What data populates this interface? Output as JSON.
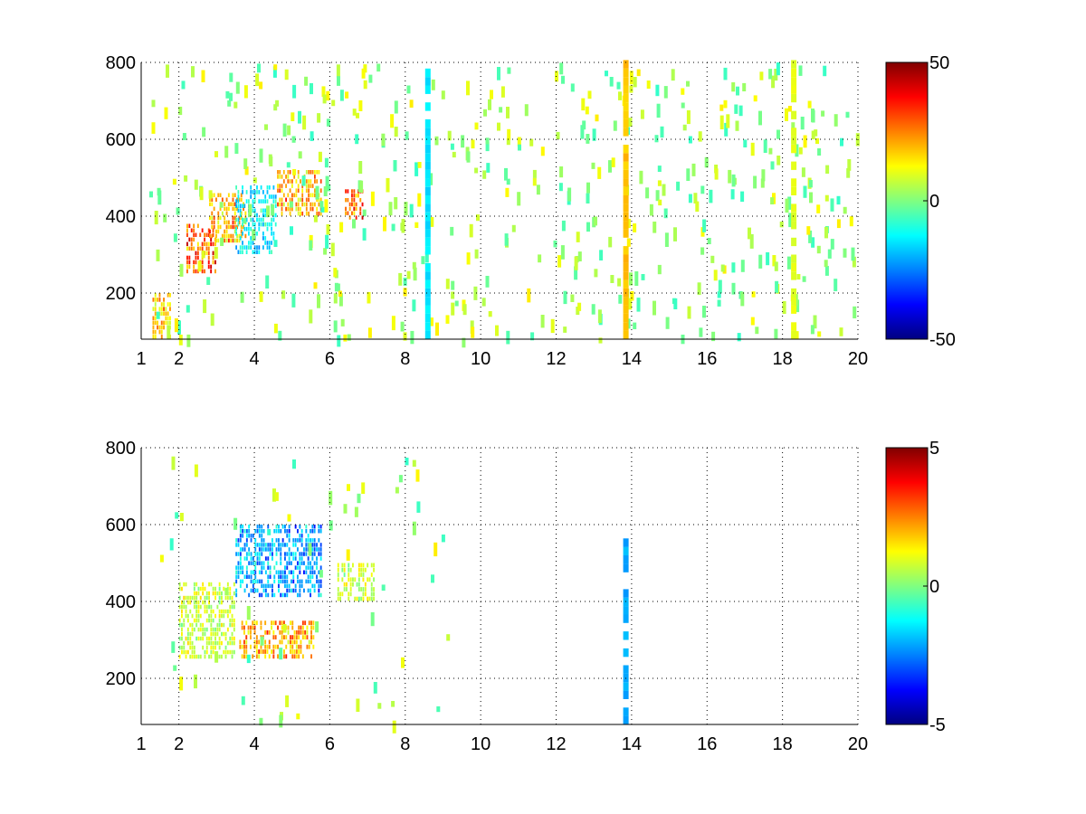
{
  "chart_data": [
    {
      "type": "heatmap",
      "panel": "top",
      "xlim": [
        1,
        20
      ],
      "ylim": [
        80,
        800
      ],
      "xticks": [
        1,
        2,
        4,
        6,
        8,
        10,
        12,
        14,
        16,
        18,
        20
      ],
      "yticks": [
        200,
        400,
        600,
        800
      ],
      "grid": true,
      "grid_style": "dotted",
      "colormap": "jet",
      "colorbar": {
        "min": -50,
        "max": 50,
        "ticks": [
          -50,
          0,
          50
        ]
      },
      "regions": [
        {
          "x": [
            1.3,
            1.8
          ],
          "y": [
            80,
            200
          ],
          "value": 25
        },
        {
          "x": [
            2.2,
            3.0
          ],
          "y": [
            250,
            380
          ],
          "value": 40
        },
        {
          "x": [
            2.8,
            3.8
          ],
          "y": [
            330,
            460
          ],
          "value": 30
        },
        {
          "x": [
            3.5,
            4.6
          ],
          "y": [
            300,
            480
          ],
          "value": -20
        },
        {
          "x": [
            4.6,
            5.8
          ],
          "y": [
            400,
            520
          ],
          "value": 30
        },
        {
          "x": [
            6.4,
            6.9
          ],
          "y": [
            390,
            470
          ],
          "value": 40
        }
      ],
      "streaks": [
        {
          "x": 8.6,
          "y": [
            80,
            800
          ],
          "value": -15
        },
        {
          "x": 13.85,
          "y": [
            80,
            800
          ],
          "value": 18
        },
        {
          "x": 18.3,
          "y": [
            80,
            800
          ],
          "value": 10
        }
      ]
    },
    {
      "type": "heatmap",
      "panel": "bottom",
      "xlim": [
        1,
        20
      ],
      "ylim": [
        80,
        800
      ],
      "xticks": [
        1,
        2,
        4,
        6,
        8,
        10,
        12,
        14,
        16,
        18,
        20
      ],
      "yticks": [
        200,
        400,
        600,
        800
      ],
      "grid": true,
      "grid_style": "dotted",
      "colormap": "jet",
      "colorbar": {
        "min": -5,
        "max": 5,
        "ticks": [
          -5,
          0,
          5
        ]
      },
      "regions": [
        {
          "x": [
            3.5,
            5.8
          ],
          "y": [
            410,
            600
          ],
          "value": -3
        },
        {
          "x": [
            3.6,
            5.6
          ],
          "y": [
            250,
            350
          ],
          "value": 3
        },
        {
          "x": [
            2.0,
            3.5
          ],
          "y": [
            250,
            450
          ],
          "value": 1
        },
        {
          "x": [
            6.2,
            7.2
          ],
          "y": [
            400,
            500
          ],
          "value": 1
        }
      ],
      "streaks": [
        {
          "x": 13.85,
          "y": [
            80,
            560
          ],
          "value": -2
        }
      ]
    }
  ]
}
